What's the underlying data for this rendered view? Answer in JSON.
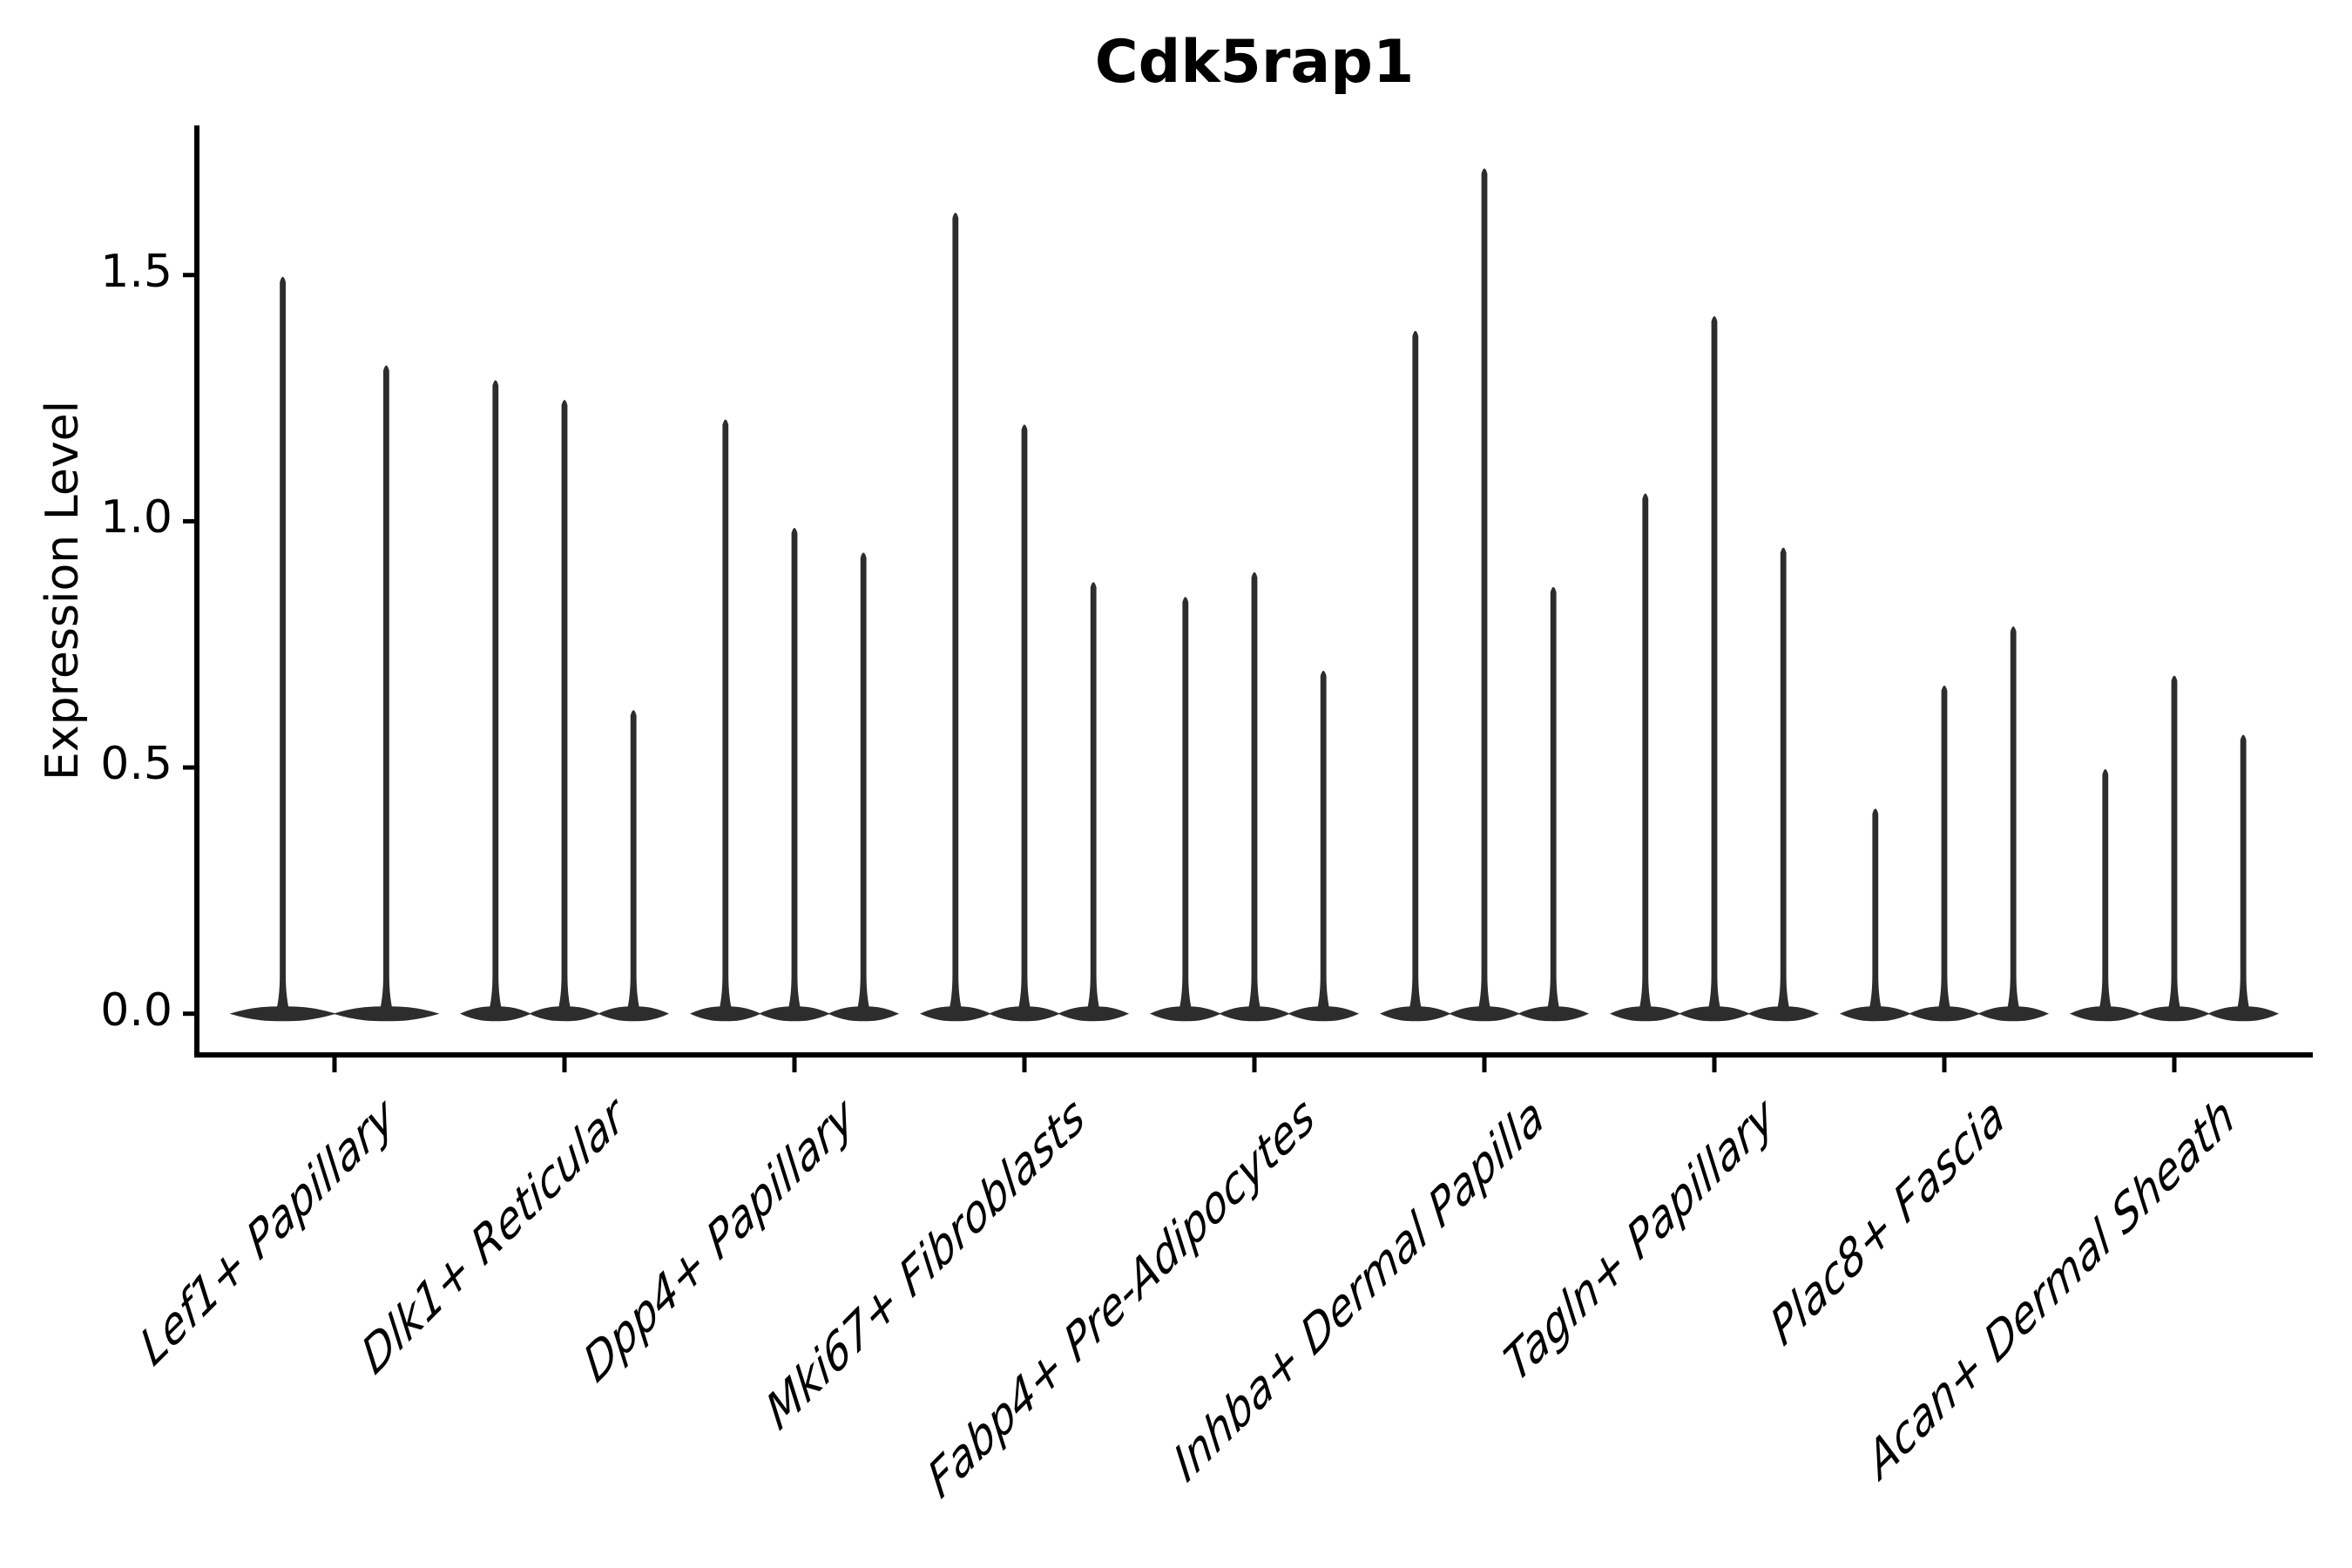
{
  "figure": {
    "title": "Cdk5rap1",
    "y_axis_label": "Expression Level"
  },
  "chart_data": {
    "type": "violin",
    "title": "Cdk5rap1",
    "xlabel": "",
    "ylabel": "Expression Level",
    "categories": [
      "Lef1+ Papillary",
      "Dlk1+ Reticular",
      "Dpp4+ Papillary",
      "Mki67+ Fibroblasts",
      "Fabp4+ Pre-Adipocytes",
      "Inhba+ Dermal Papilla",
      "Tagln+ Papillary",
      "Plac8+ Fascia",
      "Acan+ Dermal Sheath"
    ],
    "violin_max_per_category": [
      [
        1.5,
        1.32
      ],
      [
        1.29,
        1.25,
        0.62
      ],
      [
        1.21,
        0.99,
        0.94
      ],
      [
        1.63,
        1.2,
        0.88
      ],
      [
        0.85,
        0.9,
        0.7
      ],
      [
        1.39,
        1.72,
        0.87
      ],
      [
        1.06,
        1.42,
        0.95
      ],
      [
        0.42,
        0.67,
        0.79
      ],
      [
        0.5,
        0.69,
        0.57
      ]
    ],
    "distribution_note": "Each violin's density is concentrated at expression 0 (flat lens-shaped base) with an extremely thin spike rising to the listed maximum expression value; no legend, no gridlines, only left and bottom spines.",
    "yticks": [
      0.0,
      0.5,
      1.0,
      1.5
    ],
    "ytick_labels": [
      "0.0",
      "0.5",
      "1.0",
      "1.5"
    ],
    "ylim": [
      -0.08,
      1.81
    ],
    "grid": false,
    "legend": "none",
    "colors": {
      "violin": "#2d2d2d",
      "axis": "#000000",
      "text": "#000000",
      "background": "#ffffff"
    }
  }
}
